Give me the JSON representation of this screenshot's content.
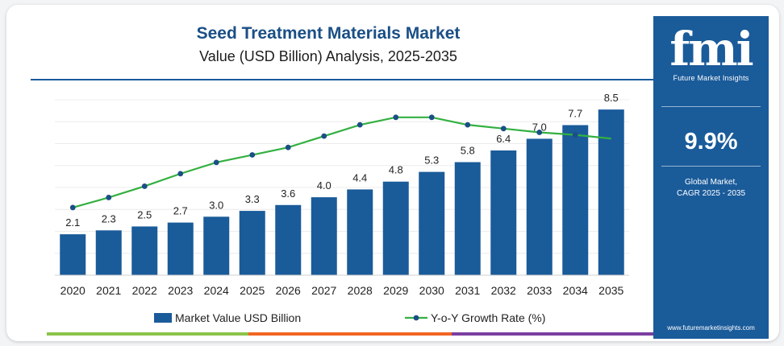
{
  "header": {
    "title": "Seed Treatment Materials Market",
    "subtitle": "Value (USD Billion) Analysis, 2025-2035"
  },
  "sidebar": {
    "logo_text": "fmi",
    "logo_tagline": "Future Market Insights",
    "cagr_value": "9.9%",
    "cagr_label_line1": "Global Market,",
    "cagr_label_line2": "CAGR 2025 - 2035",
    "website": "www.futuremarketinsights.com",
    "background_color": "#1a5b9a"
  },
  "colors": {
    "bar": "#1a5b9a",
    "line": "#33b040",
    "marker": "#1a4f86",
    "title": "#1a4f86",
    "bottom_stripes": [
      "#8bc34a",
      "#f26522",
      "#7b3fa0"
    ]
  },
  "chart_data": {
    "type": "bar+line",
    "categories": [
      "2020",
      "2021",
      "2022",
      "2023",
      "2024",
      "2025",
      "2026",
      "2027",
      "2028",
      "2029",
      "2030",
      "2031",
      "2032",
      "2033",
      "2034",
      "2035"
    ],
    "series": [
      {
        "name": "Market Value USD Billion",
        "type": "bar",
        "values": [
          2.1,
          2.3,
          2.5,
          2.7,
          3.0,
          3.3,
          3.6,
          4.0,
          4.4,
          4.8,
          5.3,
          5.8,
          6.4,
          7.0,
          7.7,
          8.5
        ],
        "labels": [
          "2.1",
          "2.3",
          "2.5",
          "2.7",
          "3.0",
          "3.3",
          "3.6",
          "4.0",
          "4.4",
          "4.8",
          "5.3",
          "5.8",
          "6.4",
          "7.0",
          "7.7",
          "8.5"
        ]
      },
      {
        "name": "Y-o-Y Growth Rate (%)",
        "type": "line",
        "values": [
          5.4,
          6.2,
          7.1,
          8.1,
          9.0,
          9.6,
          10.2,
          11.1,
          12.0,
          12.6,
          12.6,
          12.0,
          11.7,
          11.4,
          11.2,
          10.9
        ]
      }
    ],
    "ylim": [
      0,
      9
    ],
    "y2lim": [
      0,
      14
    ],
    "grid": true,
    "legend": "bottom"
  }
}
